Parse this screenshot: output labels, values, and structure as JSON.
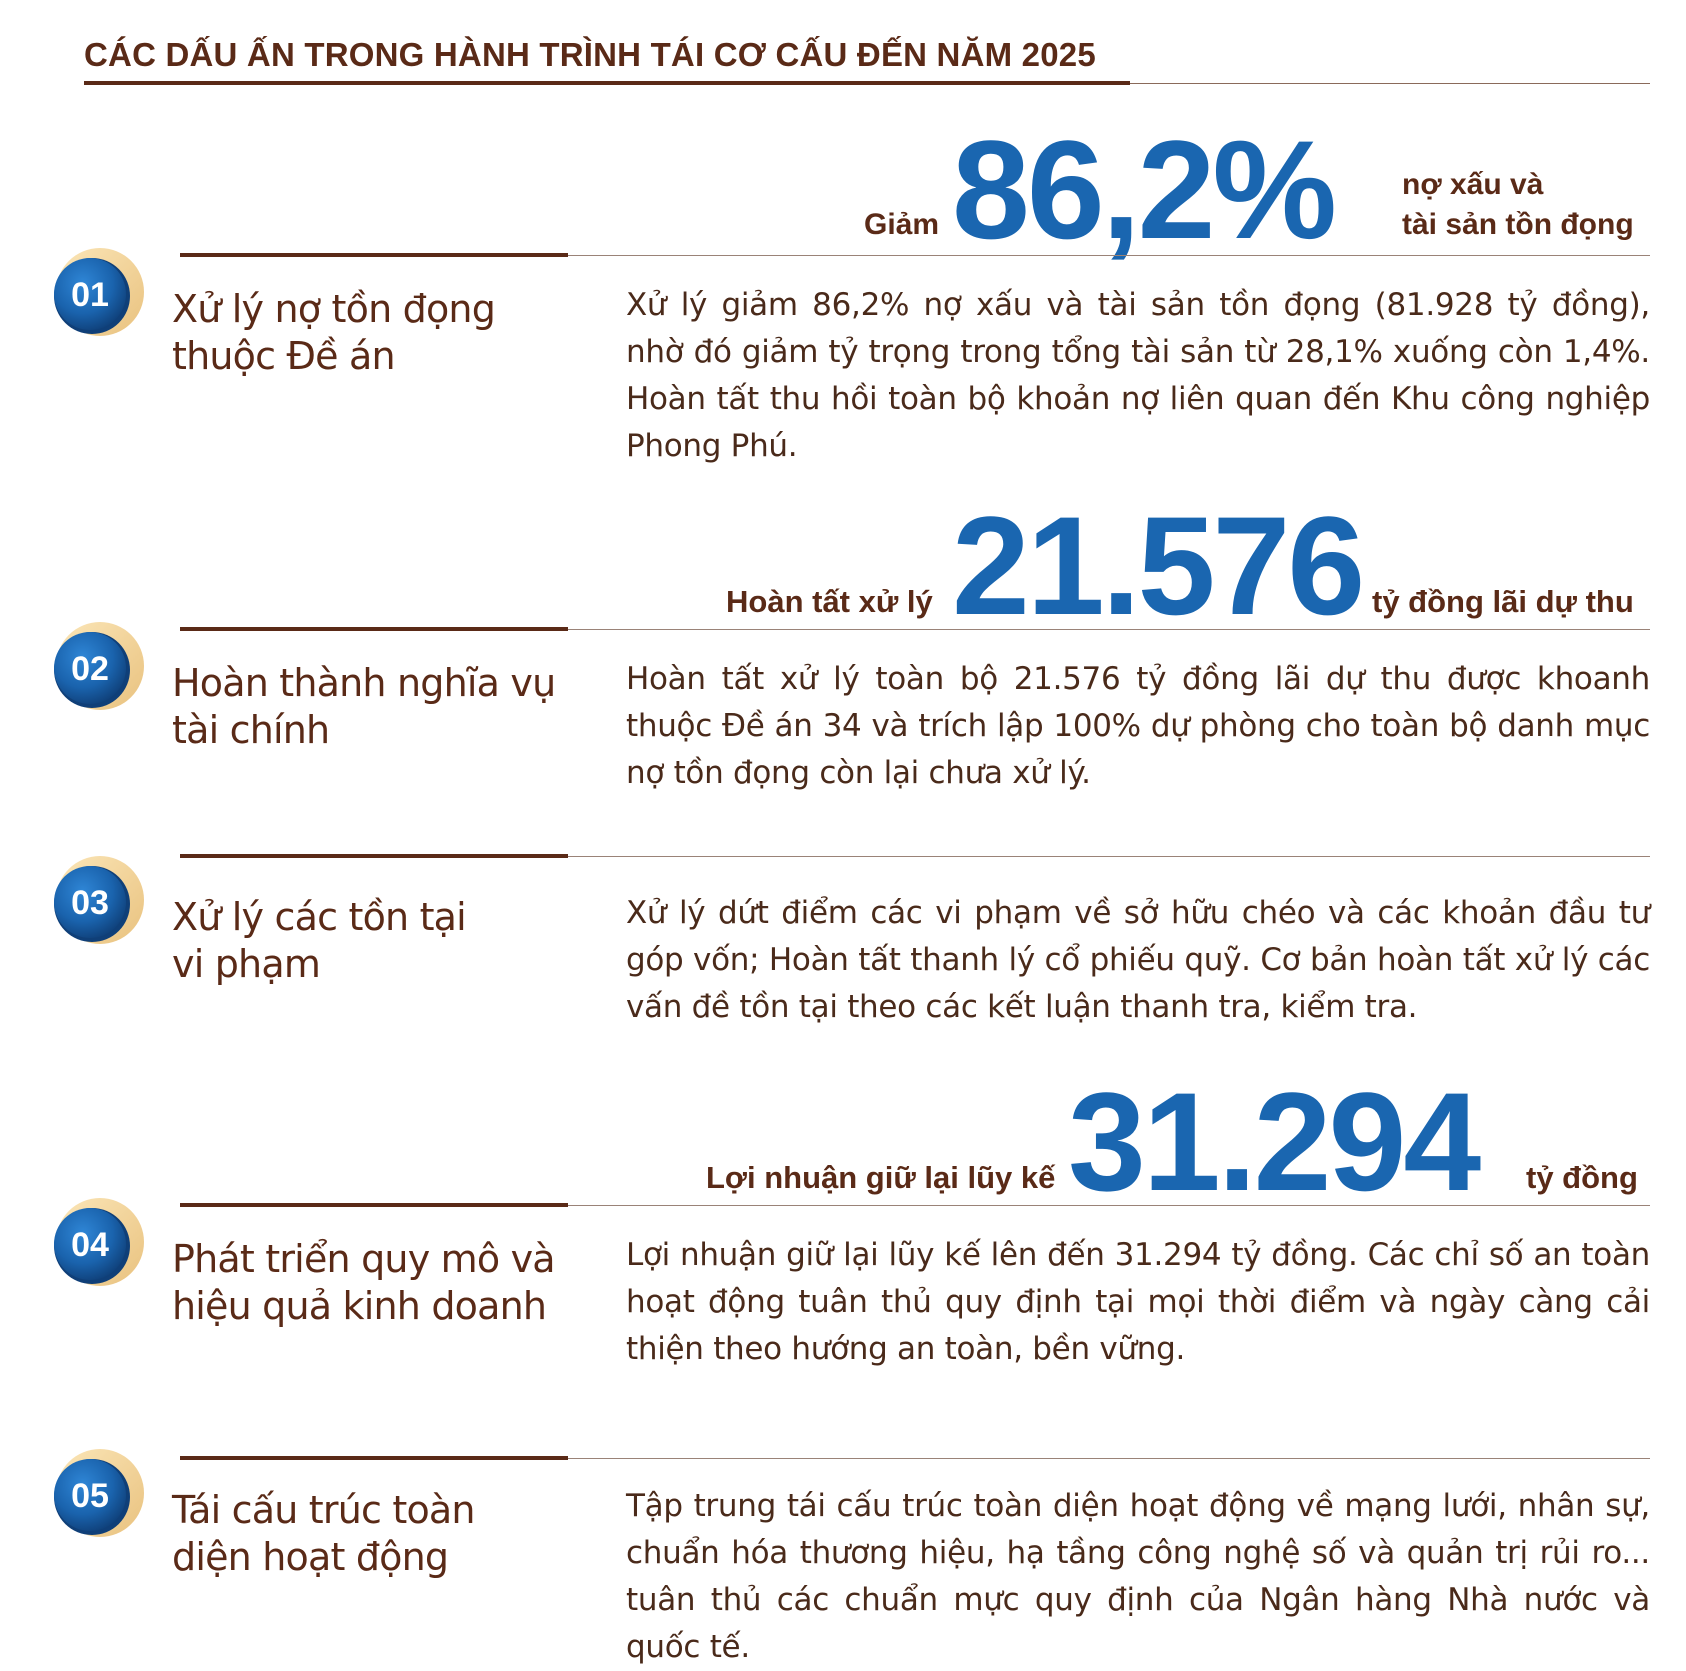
{
  "header": {
    "title": "CÁC DẤU ẤN TRONG HÀNH TRÌNH TÁI CƠ CẤU ĐẾN NĂM 2025"
  },
  "colors": {
    "brown": "#5a2a17",
    "blue": "#1a66b0",
    "gold": "#f3d9a4"
  },
  "highlights": {
    "h1": {
      "prefix": "Giảm",
      "value": "86,2%",
      "suffix_line1": "nợ xấu và",
      "suffix_line2": "tài sản tồn đọng"
    },
    "h2": {
      "prefix": "Hoàn tất xử lý",
      "value": "21.576",
      "suffix": "tỷ đồng lãi dự thu"
    },
    "h3": {
      "prefix": "Lợi nhuận giữ lại lũy kế",
      "value": "31.294",
      "suffix": "tỷ đồng"
    }
  },
  "items": [
    {
      "number": "01",
      "title_line1": "Xử lý nợ tồn đọng",
      "title_line2": "thuộc Đề án",
      "description": "Xử lý giảm 86,2% nợ xấu và tài sản tồn đọng (81.928 tỷ đồng), nhờ đó giảm tỷ trọng trong tổng tài sản từ 28,1% xuống còn 1,4%. Hoàn tất thu hồi toàn bộ khoản nợ liên quan đến Khu công nghiệp Phong Phú."
    },
    {
      "number": "02",
      "title_line1": "Hoàn thành nghĩa vụ",
      "title_line2": "tài chính",
      "description": "Hoàn tất xử lý toàn bộ 21.576 tỷ đồng lãi dự thu được khoanh thuộc Đề án 34 và trích lập 100% dự phòng cho toàn bộ danh mục nợ tồn đọng còn lại chưa xử lý."
    },
    {
      "number": "03",
      "title_line1": "Xử lý các tồn tại",
      "title_line2": "vi phạm",
      "description": "Xử lý dứt điểm các vi phạm về sở hữu chéo và các khoản đầu tư góp vốn; Hoàn tất thanh lý cổ phiếu quỹ. Cơ bản hoàn tất xử lý các vấn đề tồn tại theo các kết luận thanh tra, kiểm tra."
    },
    {
      "number": "04",
      "title_line1": "Phát triển quy mô và",
      "title_line2": "hiệu quả kinh doanh",
      "description": "Lợi nhuận giữ lại lũy kế lên đến 31.294 tỷ đồng. Các chỉ số an toàn hoạt động tuân thủ quy định tại mọi thời điểm và ngày càng cải thiện theo hướng an toàn, bền vững."
    },
    {
      "number": "05",
      "title_line1": "Tái cấu trúc toàn",
      "title_line2": "diện hoạt động",
      "description": "Tập trung tái cấu trúc toàn diện hoạt động về mạng lưới, nhân sự, chuẩn hóa thương hiệu, hạ tầng công nghệ số và quản trị rủi ro... tuân thủ các chuẩn mực quy định của Ngân hàng Nhà nước và quốc tế."
    }
  ]
}
